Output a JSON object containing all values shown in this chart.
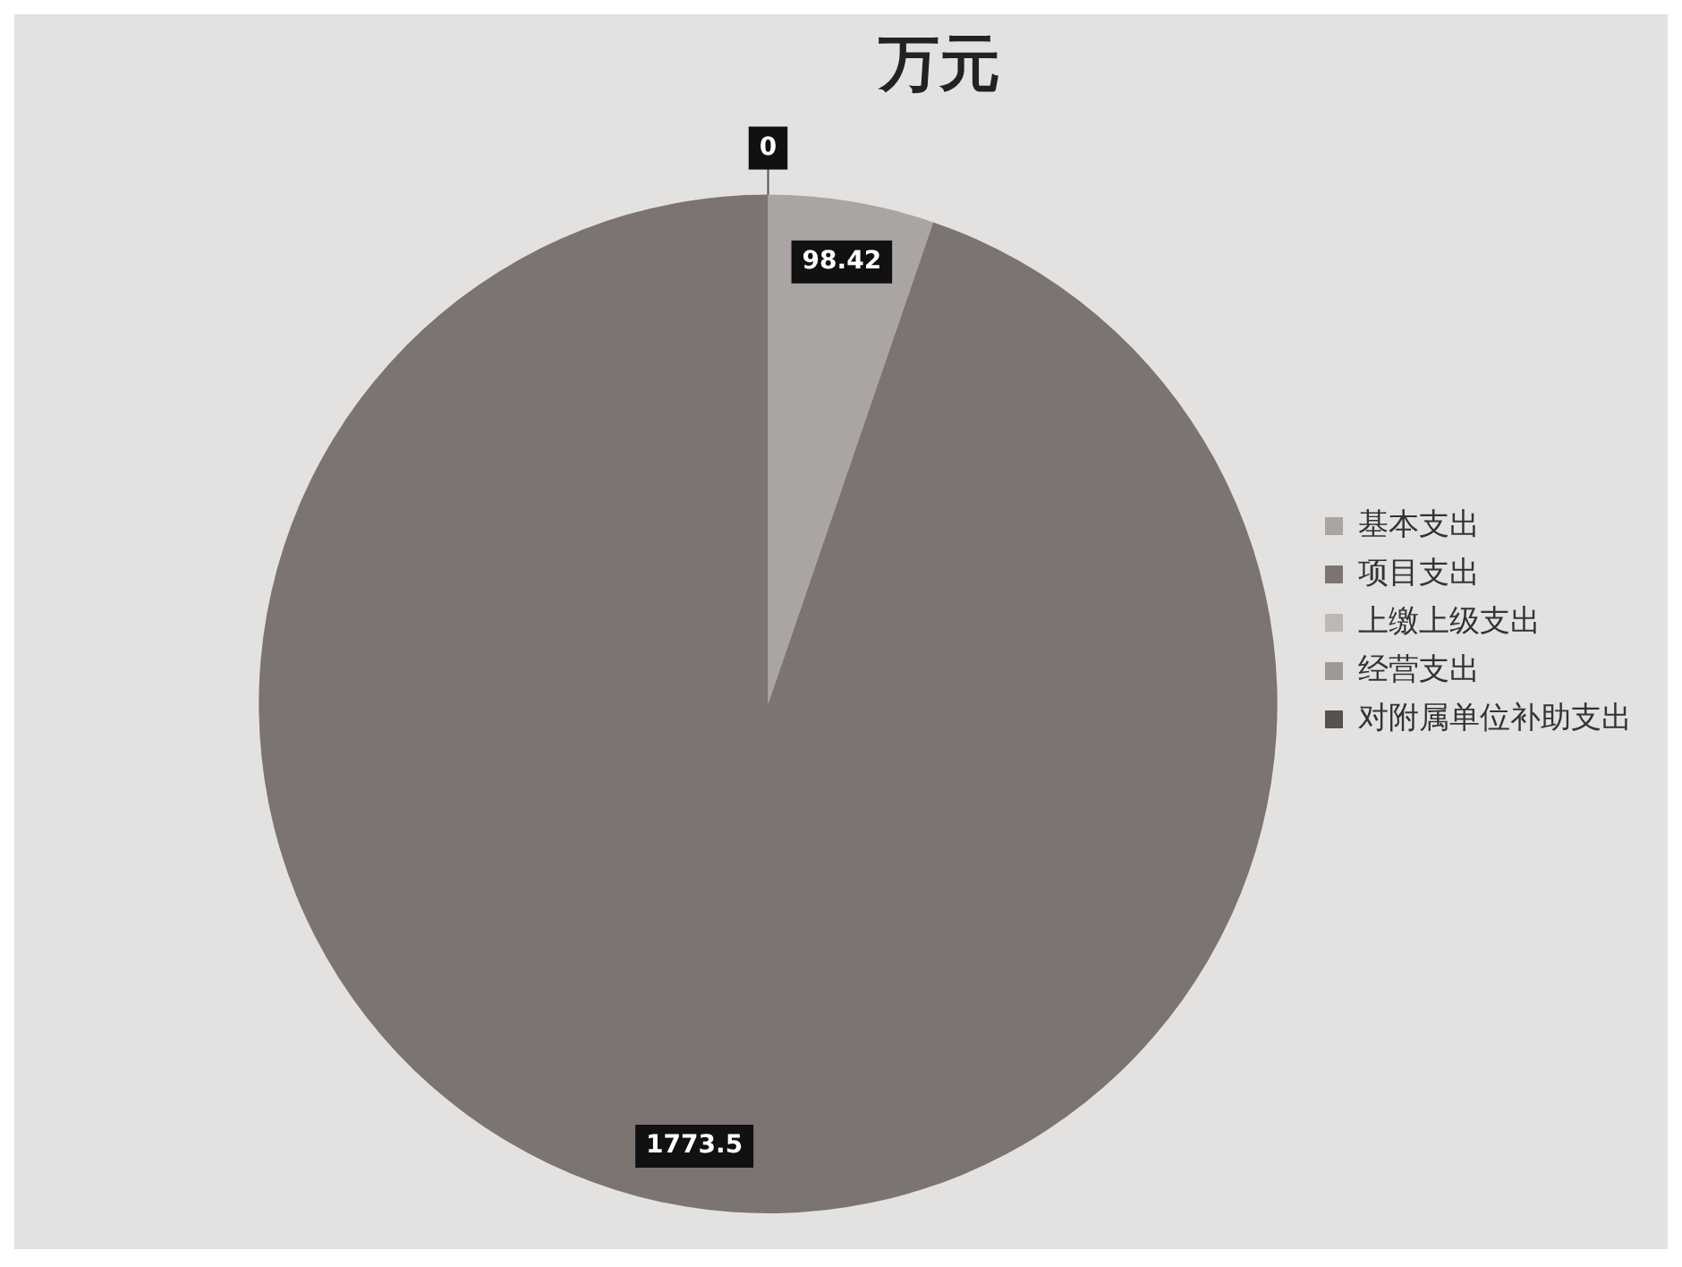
{
  "chart_data": {
    "type": "pie",
    "title": "万元",
    "categories": [
      "基本支出",
      "项目支出",
      "上缴上级支出",
      "经营支出",
      "对附属单位补助支出"
    ],
    "values": [
      98.42,
      1773.5,
      0,
      0,
      0
    ],
    "colors": [
      "#aaa5a2",
      "#7b7471",
      "#bcb8b6",
      "#9d9997",
      "#57524f"
    ],
    "value_labels": [
      "98.42",
      "1773.5",
      "0",
      null,
      null
    ],
    "legend": "right"
  }
}
